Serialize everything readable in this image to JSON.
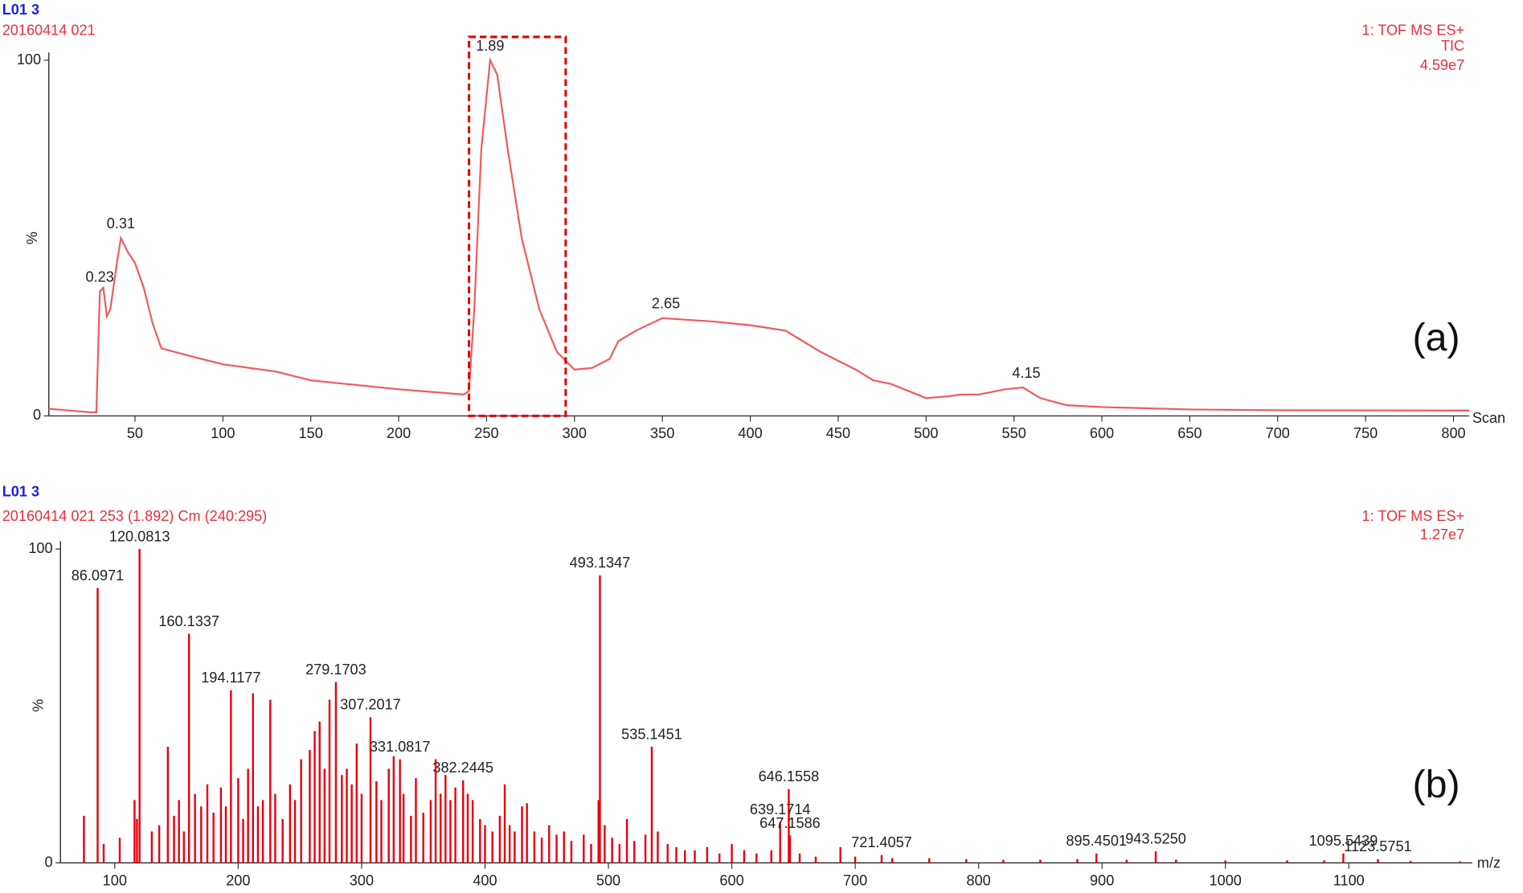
{
  "chart_data": [
    {
      "type": "line",
      "title": "L01 3",
      "subtitle": "20160414 021",
      "info": [
        "1: TOF MS ES+",
        "TIC",
        "4.59e7"
      ],
      "panel_label": "(a)",
      "xlabel": "Scan",
      "ylabel": "%",
      "color": "#f05a5a",
      "xlim": [
        1,
        809
      ],
      "ylim": [
        0,
        100
      ],
      "xticks": [
        50,
        100,
        150,
        200,
        250,
        300,
        350,
        400,
        450,
        500,
        550,
        600,
        650,
        700,
        750,
        800
      ],
      "yticks": [
        0,
        100
      ],
      "x": [
        1,
        25,
        28,
        30,
        32,
        34,
        36,
        40,
        42,
        46,
        50,
        55,
        60,
        65,
        80,
        100,
        130,
        150,
        200,
        237,
        240,
        243,
        247,
        252,
        256,
        262,
        270,
        280,
        290,
        300,
        310,
        320,
        325,
        335,
        350,
        380,
        400,
        420,
        440,
        460,
        470,
        480,
        500,
        512,
        520,
        530,
        545,
        555,
        565,
        580,
        600,
        650,
        700,
        809
      ],
      "values": [
        2,
        1,
        1,
        35,
        36,
        28,
        30,
        44,
        50,
        46,
        43,
        36,
        26,
        19,
        17,
        14.5,
        12.5,
        10,
        7.5,
        6,
        7,
        30,
        75,
        100,
        96,
        75,
        50,
        30,
        18,
        13,
        13.5,
        16,
        21,
        24,
        27.5,
        26.5,
        25.5,
        24,
        18,
        13,
        10,
        9,
        5,
        5.5,
        6,
        6,
        7.5,
        8,
        5,
        3,
        2.5,
        1.8,
        1.6,
        1.5
      ],
      "annotations": [
        {
          "text": "0.23",
          "x": 30,
          "y": 35
        },
        {
          "text": "0.31",
          "x": 42,
          "y": 50
        },
        {
          "text": "1.89",
          "x": 252,
          "y": 100
        },
        {
          "text": "2.65",
          "x": 352,
          "y": 27.5
        },
        {
          "text": "4.15",
          "x": 557,
          "y": 8
        }
      ],
      "highlight": [
        240,
        295
      ]
    },
    {
      "type": "bar",
      "title": "L01 3",
      "subtitle": "20160414 021 253 (1.892) Cm (240:295)",
      "info": [
        "1: TOF MS ES+",
        "1.27e7"
      ],
      "panel_label": "(b)",
      "xlabel": "m/z",
      "ylabel": "%",
      "xlim": [
        56,
        1200
      ],
      "ylim": [
        0,
        100
      ],
      "xticks": [
        100,
        200,
        300,
        400,
        500,
        600,
        700,
        800,
        900,
        1000,
        1100
      ],
      "yticks": [
        0,
        100
      ],
      "series": [
        {
          "color": "#e8000f",
          "labeled": true,
          "x": [
            86.0971,
            120.0813,
            160.1337,
            194.1177,
            279.1703,
            307.2017,
            331.0817,
            382.2445,
            493.1347,
            535.1451,
            639.1714,
            646.1558,
            647.1586,
            721.4057,
            895.4501,
            943.525,
            1095.5439,
            1123.5751
          ],
          "x_labels": [
            "86.0971",
            "120.0813",
            "160.1337",
            "194.1177",
            "279.1703",
            "307.2017",
            "331.0817",
            "382.2445",
            "493.1347",
            "535.1451",
            "639.1714",
            "646.1558",
            "647.1586",
            "721.4057",
            "895.4501",
            "943.5250",
            "1095.5439",
            "1123.5751"
          ],
          "values": [
            87.6,
            100,
            73,
            55,
            57.6,
            46.4,
            33,
            26.3,
            91.6,
            37,
            13,
            23.5,
            8.7,
            2.5,
            3,
            3.7,
            3,
            1.2
          ]
        },
        {
          "color": "#e8000f",
          "labeled": false,
          "x": [
            75,
            91,
            104,
            116,
            118,
            130,
            136,
            143,
            148,
            152,
            156,
            165,
            170,
            175,
            180,
            186,
            190,
            200,
            204,
            208,
            212,
            216,
            220,
            226,
            230,
            236,
            242,
            246,
            251,
            258,
            262,
            266,
            270,
            274,
            284,
            288,
            292,
            296,
            300,
            312,
            316,
            322,
            326,
            334,
            340,
            344,
            350,
            356,
            360,
            364,
            368,
            372,
            376,
            386,
            390,
            396,
            400,
            406,
            412,
            416,
            420,
            424,
            430,
            434,
            440,
            446,
            452,
            458,
            464,
            470,
            480,
            486,
            492,
            497,
            503,
            509,
            515,
            521,
            530,
            540,
            548,
            555,
            562,
            570,
            580,
            590,
            600,
            610,
            620,
            632,
            655,
            668,
            688,
            700,
            730,
            760,
            790,
            820,
            850,
            880,
            920,
            960,
            1000,
            1050,
            1080,
            1150,
            1190
          ],
          "values": [
            15,
            6,
            8,
            20,
            14,
            10,
            12,
            37,
            15,
            20,
            10,
            22,
            18,
            25,
            16,
            24,
            18,
            27,
            14,
            30,
            54,
            18,
            20,
            52,
            22,
            14,
            25,
            20,
            33,
            36,
            42,
            45,
            30,
            52,
            28,
            30,
            25,
            38,
            22,
            26,
            20,
            30,
            34,
            22,
            15,
            27,
            16,
            20,
            33,
            22,
            28,
            20,
            24,
            22,
            20,
            14,
            12,
            10,
            15,
            25,
            12,
            10,
            18,
            19,
            10,
            8,
            12,
            9,
            10,
            7,
            9,
            6,
            20,
            12,
            8,
            6,
            14,
            7,
            9,
            10,
            6,
            5,
            4,
            4,
            5,
            3,
            6,
            4,
            3,
            4,
            3,
            2,
            5,
            2,
            1.5,
            1.5,
            1.2,
            1,
            1,
            1.2,
            1,
            1,
            0.8,
            0.8,
            0.8,
            0.6,
            0.5
          ]
        }
      ]
    }
  ]
}
